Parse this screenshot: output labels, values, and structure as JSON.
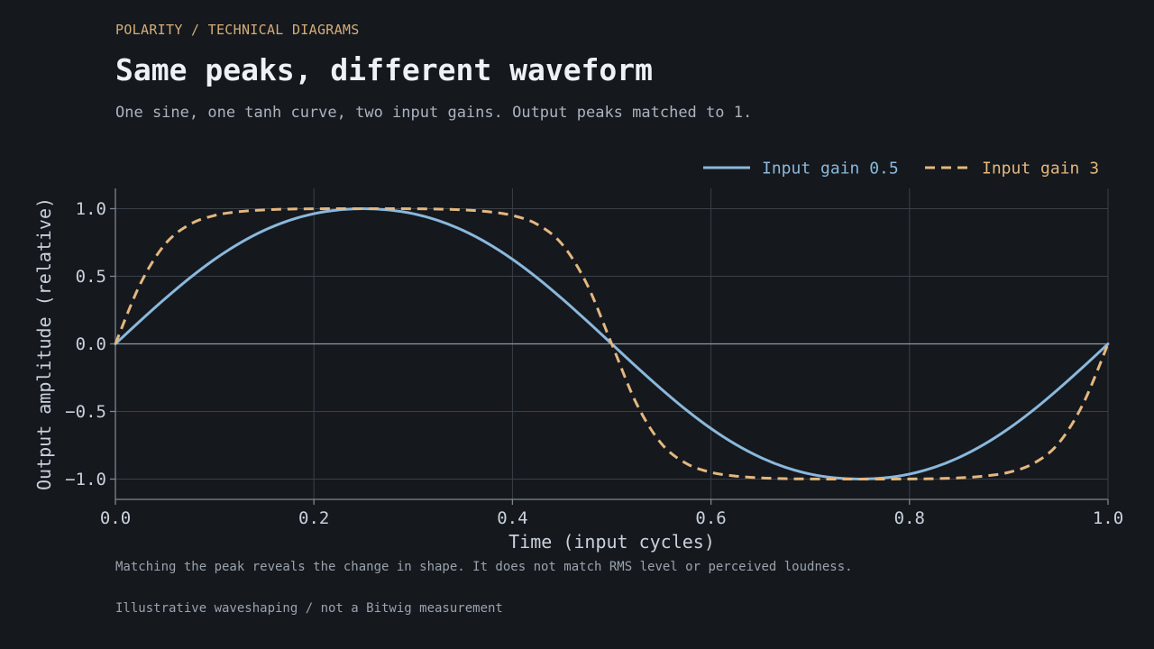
{
  "header": {
    "kicker": "POLARITY / TECHNICAL DIAGRAMS",
    "title": "Same peaks, different waveform",
    "subtitle": "One sine, one tanh curve, two input gains. Output peaks matched to 1."
  },
  "note": "Matching the peak reveals the change in shape. It does not match RMS level or perceived loudness.",
  "footer": "Illustrative waveshaping / not a Bitwig measurement",
  "colors": {
    "background": "#15181d",
    "grid": "#3a4049",
    "axis": "#7d8691",
    "zero_line": "#8f99a6",
    "series_sine": "#8ab8dc",
    "series_tanh": "#e3b77f"
  },
  "chart_data": {
    "type": "line",
    "title": "Same peaks, different waveform",
    "xlabel": "Time (input cycles)",
    "ylabel": "Output amplitude (relative)",
    "xlim": [
      0,
      1
    ],
    "ylim": [
      -1.15,
      1.15
    ],
    "xticks": [
      0.0,
      0.2,
      0.4,
      0.6,
      0.8,
      1.0
    ],
    "xtick_labels": [
      "0.0",
      "0.2",
      "0.4",
      "0.6",
      "0.8",
      "1.0"
    ],
    "yticks": [
      1.0,
      0.5,
      0.0,
      -0.5,
      -1.0
    ],
    "ytick_labels": [
      "1.0",
      "0.5",
      "0.0",
      "−0.5",
      "−1.0"
    ],
    "grid": true,
    "legend_position": "top-right",
    "series": [
      {
        "name": "Input gain 0.5",
        "style": "solid",
        "color": "#8ab8dc",
        "x": [
          0,
          0.025,
          0.05,
          0.075,
          0.1,
          0.125,
          0.15,
          0.175,
          0.2,
          0.225,
          0.25,
          0.275,
          0.3,
          0.325,
          0.35,
          0.375,
          0.4,
          0.425,
          0.45,
          0.475,
          0.5,
          0.525,
          0.55,
          0.575,
          0.6,
          0.625,
          0.65,
          0.675,
          0.7,
          0.725,
          0.75,
          0.775,
          0.8,
          0.825,
          0.85,
          0.875,
          0.9,
          0.925,
          0.95,
          0.975,
          1.0
        ],
        "y": [
          0.0,
          0.17,
          0.334,
          0.488,
          0.626,
          0.744,
          0.84,
          0.913,
          0.963,
          0.991,
          1.0,
          0.991,
          0.963,
          0.913,
          0.84,
          0.744,
          0.626,
          0.488,
          0.334,
          0.17,
          0.0,
          -0.17,
          -0.334,
          -0.488,
          -0.626,
          -0.744,
          -0.84,
          -0.913,
          -0.963,
          -0.991,
          -1.0,
          -0.991,
          -0.963,
          -0.913,
          -0.84,
          -0.744,
          -0.626,
          -0.488,
          -0.334,
          -0.17,
          0.0
        ]
      },
      {
        "name": "Input gain 3",
        "style": "dashed",
        "color": "#e3b77f",
        "x": [
          0,
          0.025,
          0.05,
          0.075,
          0.1,
          0.125,
          0.15,
          0.175,
          0.2,
          0.225,
          0.25,
          0.275,
          0.3,
          0.325,
          0.35,
          0.375,
          0.4,
          0.425,
          0.45,
          0.475,
          0.5,
          0.525,
          0.55,
          0.575,
          0.6,
          0.625,
          0.65,
          0.675,
          0.7,
          0.725,
          0.75,
          0.775,
          0.8,
          0.825,
          0.85,
          0.875,
          0.9,
          0.925,
          0.95,
          0.975,
          1.0
        ],
        "y": [
          0.0,
          0.442,
          0.737,
          0.884,
          0.95,
          0.978,
          0.991,
          0.997,
          0.999,
          1.0,
          1.0,
          1.0,
          0.999,
          0.997,
          0.991,
          0.978,
          0.95,
          0.884,
          0.737,
          0.442,
          0.0,
          -0.442,
          -0.737,
          -0.884,
          -0.95,
          -0.978,
          -0.991,
          -0.997,
          -0.999,
          -1.0,
          -1.0,
          -1.0,
          -0.999,
          -0.997,
          -0.991,
          -0.978,
          -0.95,
          -0.884,
          -0.737,
          -0.442,
          0.0
        ]
      }
    ]
  }
}
